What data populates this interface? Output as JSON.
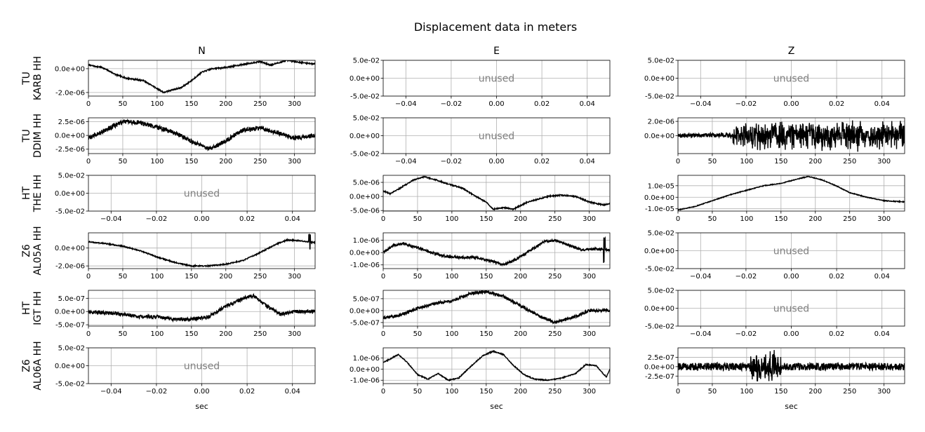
{
  "figure": {
    "title": "Displacement data in meters",
    "column_titles": [
      "N",
      "E",
      "Z"
    ],
    "row_labels": [
      [
        "TU",
        "KARB HH"
      ],
      [
        "TU",
        "DDIM HH"
      ],
      [
        "HT",
        "THE HH"
      ],
      [
        "Z6",
        "AL05A HH"
      ],
      [
        "HT",
        "IGT HH"
      ],
      [
        "Z6",
        "AL06A HH"
      ]
    ],
    "unused_label": "unused",
    "xlabel": "sec"
  },
  "chart_data": [
    {
      "type": "line",
      "row": 0,
      "col": 0,
      "station": "TU KARB HH",
      "component": "N",
      "grid": true,
      "xlim": [
        0,
        330
      ],
      "ylim": [
        -2.3e-06,
        7e-07
      ],
      "xticks": [
        0,
        50,
        100,
        150,
        200,
        250,
        300
      ],
      "xticklabels": [
        "0",
        "50",
        "100",
        "150",
        "200",
        "250",
        "300"
      ],
      "yticks": [
        0,
        -2e-06
      ],
      "yticklabels": [
        "0.0e+00",
        "-2.0e-06"
      ],
      "series": [
        {
          "noise": 5e-08,
          "x": [
            0,
            20,
            40,
            55,
            80,
            95,
            110,
            120,
            135,
            150,
            165,
            180,
            200,
            230,
            250,
            265,
            290,
            310,
            330
          ],
          "y": [
            3e-07,
            1e-07,
            -5e-07,
            -8e-07,
            -1e-06,
            -1.5e-06,
            -2e-06,
            -1.8e-06,
            -1.6e-06,
            -1e-06,
            -3e-07,
            0,
            1e-07,
            4e-07,
            6e-07,
            3e-07,
            7e-07,
            5e-07,
            4e-07
          ]
        }
      ]
    },
    {
      "type": "empty",
      "row": 0,
      "col": 1,
      "station": "TU KARB HH",
      "component": "E",
      "grid": true,
      "xlim": [
        -0.05,
        0.05
      ],
      "ylim": [
        -0.05,
        0.05
      ],
      "xticks": [
        -0.04,
        -0.02,
        0,
        0.02,
        0.04
      ],
      "xticklabels": [
        "−0.04",
        "−0.02",
        "0.00",
        "0.02",
        "0.04"
      ],
      "yticks": [
        0.05,
        0,
        -0.05
      ],
      "yticklabels": [
        "5.0e-02",
        "0.0e+00",
        "-5.0e-02"
      ],
      "text": "unused"
    },
    {
      "type": "empty",
      "row": 0,
      "col": 2,
      "station": "TU KARB HH",
      "component": "Z",
      "grid": true,
      "xlim": [
        -0.05,
        0.05
      ],
      "ylim": [
        -0.05,
        0.05
      ],
      "xticks": [
        -0.04,
        -0.02,
        0,
        0.02,
        0.04
      ],
      "xticklabels": [
        "−0.04",
        "−0.02",
        "0.00",
        "0.02",
        "0.04"
      ],
      "yticks": [
        0.05,
        0,
        -0.05
      ],
      "yticklabels": [
        "5.0e-02",
        "0.0e+00",
        "-5.0e-02"
      ],
      "text": "unused"
    },
    {
      "type": "line",
      "row": 1,
      "col": 0,
      "station": "TU DDIM HH",
      "component": "N",
      "grid": true,
      "xlim": [
        0,
        330
      ],
      "ylim": [
        -3.3e-06,
        3.2e-06
      ],
      "xticks": [
        0,
        50,
        100,
        150,
        200,
        250,
        300
      ],
      "xticklabels": [
        "0",
        "50",
        "100",
        "150",
        "200",
        "250",
        "300"
      ],
      "yticks": [
        2.5e-06,
        0,
        -2.5e-06
      ],
      "yticklabels": [
        "2.5e-06",
        "0.0e+00",
        "-2.5e-06"
      ],
      "series": [
        {
          "noise": 4e-07,
          "x": [
            0,
            25,
            50,
            75,
            100,
            125,
            150,
            175,
            200,
            225,
            250,
            275,
            300,
            330
          ],
          "y": [
            -5e-07,
            1e-06,
            2.5e-06,
            2.3e-06,
            1.5e-06,
            5e-07,
            -1e-06,
            -2.5e-06,
            -1e-06,
            1e-06,
            1.3e-06,
            5e-07,
            -5e-07,
            0
          ]
        }
      ]
    },
    {
      "type": "empty",
      "row": 1,
      "col": 1,
      "station": "TU DDIM HH",
      "component": "E",
      "grid": true,
      "xlim": [
        -0.05,
        0.05
      ],
      "ylim": [
        -0.05,
        0.05
      ],
      "xticks": [
        -0.04,
        -0.02,
        0,
        0.02,
        0.04
      ],
      "xticklabels": [
        "−0.04",
        "−0.02",
        "0.00",
        "0.02",
        "0.04"
      ],
      "yticks": [
        0.05,
        0,
        -0.05
      ],
      "yticklabels": [
        "5.0e-02",
        "0.0e+00",
        "-5.0e-02"
      ],
      "text": "unused"
    },
    {
      "type": "line",
      "row": 1,
      "col": 2,
      "station": "TU DDIM HH",
      "component": "Z",
      "grid": true,
      "xlim": [
        0,
        330
      ],
      "ylim": [
        -2.5e-06,
        2.5e-06
      ],
      "xticks": [
        0,
        50,
        100,
        150,
        200,
        250,
        300
      ],
      "xticklabels": [
        "0",
        "50",
        "100",
        "150",
        "200",
        "250",
        "300"
      ],
      "yticks": [
        2e-06,
        0
      ],
      "yticklabels": [
        "2.0e-06",
        "0.0e+00"
      ],
      "series": [
        {
          "noise": 3e-07,
          "burst": {
            "from": 80,
            "to": 330,
            "amp": 1.6e-06
          },
          "x": [
            0,
            60,
            80,
            330
          ],
          "y": [
            0,
            1e-07,
            0,
            0
          ]
        }
      ]
    },
    {
      "type": "empty",
      "row": 2,
      "col": 0,
      "station": "HT THE HH",
      "component": "N",
      "grid": true,
      "xlim": [
        -0.05,
        0.05
      ],
      "ylim": [
        -0.05,
        0.05
      ],
      "xticks": [
        -0.04,
        -0.02,
        0,
        0.02,
        0.04
      ],
      "xticklabels": [
        "−0.04",
        "−0.02",
        "0.00",
        "0.02",
        "0.04"
      ],
      "yticks": [
        0.05,
        0,
        -0.05
      ],
      "yticklabels": [
        "5.0e-02",
        "0.0e+00",
        "-5.0e-02"
      ],
      "text": "unused"
    },
    {
      "type": "line",
      "row": 2,
      "col": 1,
      "station": "HT THE HH",
      "component": "E",
      "grid": true,
      "xlim": [
        0,
        330
      ],
      "ylim": [
        -5.2e-06,
        7.5e-06
      ],
      "xticks": [
        0,
        50,
        100,
        150,
        200,
        250,
        300
      ],
      "xticklabels": [
        "0",
        "50",
        "100",
        "150",
        "200",
        "250",
        "300"
      ],
      "yticks": [
        5e-06,
        0,
        -5e-06
      ],
      "yticklabels": [
        "5.0e-06",
        "0.0e+00",
        "-5.0e-06"
      ],
      "series": [
        {
          "noise": 2e-07,
          "x": [
            0,
            10,
            25,
            45,
            60,
            75,
            100,
            115,
            135,
            150,
            160,
            175,
            190,
            210,
            225,
            240,
            260,
            280,
            300,
            320,
            330
          ],
          "y": [
            2e-06,
            1e-06,
            3e-06,
            6e-06,
            7e-06,
            6e-06,
            4e-06,
            3e-06,
            0,
            -2e-06,
            -4.5e-06,
            -4e-06,
            -4.5e-06,
            -2e-06,
            -1e-06,
            0,
            5e-07,
            0,
            -2e-06,
            -3e-06,
            -2.5e-06
          ]
        }
      ]
    },
    {
      "type": "line",
      "row": 2,
      "col": 2,
      "station": "HT THE HH",
      "component": "Z",
      "grid": true,
      "xlim": [
        0,
        330
      ],
      "ylim": [
        -1.2e-05,
        1.9e-05
      ],
      "xticks": [
        0,
        50,
        100,
        150,
        200,
        250,
        300
      ],
      "xticklabels": [
        "0",
        "50",
        "100",
        "150",
        "200",
        "250",
        "300"
      ],
      "yticks": [
        1e-05,
        0,
        -1e-05
      ],
      "yticklabels": [
        "1.0e-05",
        "0.0e+00",
        "-1.0e-05"
      ],
      "series": [
        {
          "noise": 3e-07,
          "x": [
            0,
            25,
            50,
            75,
            100,
            125,
            150,
            175,
            190,
            210,
            230,
            250,
            275,
            300,
            330
          ],
          "y": [
            -1.1e-05,
            -8e-06,
            -3e-06,
            2e-06,
            6e-06,
            1e-05,
            1.2e-05,
            1.6e-05,
            1.8e-05,
            1.5e-05,
            1e-05,
            4e-06,
            0,
            -3e-06,
            -4e-06
          ]
        }
      ]
    },
    {
      "type": "line",
      "row": 3,
      "col": 0,
      "station": "Z6 AL05A HH",
      "component": "N",
      "grid": true,
      "xlim": [
        0,
        330
      ],
      "ylim": [
        -2.3e-06,
        1.7e-06
      ],
      "xticks": [
        0,
        50,
        100,
        150,
        200,
        250,
        300
      ],
      "xticklabels": [
        "0",
        "50",
        "100",
        "150",
        "200",
        "250",
        "300"
      ],
      "yticks": [
        0,
        -2e-06
      ],
      "yticklabels": [
        "0.0e+00",
        "-2.0e-06"
      ],
      "series": [
        {
          "noise": 6e-08,
          "spike": {
            "x": 322,
            "amp": 8e-07
          },
          "x": [
            0,
            25,
            50,
            75,
            100,
            125,
            150,
            175,
            200,
            225,
            250,
            275,
            290,
            310,
            330
          ],
          "y": [
            7e-07,
            5e-07,
            2e-07,
            -3e-07,
            -1e-06,
            -1.6e-06,
            -2e-06,
            -2e-06,
            -1.8e-06,
            -1.4e-06,
            -5e-07,
            5e-07,
            9e-07,
            8e-07,
            6e-07
          ]
        }
      ]
    },
    {
      "type": "line",
      "row": 3,
      "col": 1,
      "station": "Z6 AL05A HH",
      "component": "E",
      "grid": true,
      "xlim": [
        0,
        330
      ],
      "ylim": [
        -1.3e-06,
        1.6e-06
      ],
      "xticks": [
        0,
        50,
        100,
        150,
        200,
        250,
        300
      ],
      "xticklabels": [
        "0",
        "50",
        "100",
        "150",
        "200",
        "250",
        "300"
      ],
      "yticks": [
        1e-06,
        0,
        -1e-06
      ],
      "yticklabels": [
        "1.0e-06",
        "0.0e+00",
        "-1.0e-06"
      ],
      "series": [
        {
          "noise": 1e-07,
          "spike": {
            "x": 322,
            "amp": 1e-06
          },
          "x": [
            0,
            15,
            30,
            50,
            70,
            90,
            110,
            135,
            150,
            160,
            175,
            195,
            215,
            235,
            250,
            270,
            290,
            310,
            330
          ],
          "y": [
            0,
            6e-07,
            7e-07,
            4e-07,
            0,
            -3e-07,
            -4e-07,
            -4e-07,
            -6e-07,
            -7e-07,
            -1e-06,
            -5e-07,
            2e-07,
            9e-07,
            1e-06,
            6e-07,
            2e-07,
            3e-07,
            2e-07
          ]
        }
      ]
    },
    {
      "type": "empty",
      "row": 3,
      "col": 2,
      "station": "Z6 AL05A HH",
      "component": "Z",
      "grid": true,
      "xlim": [
        -0.05,
        0.05
      ],
      "ylim": [
        -0.05,
        0.05
      ],
      "xticks": [
        -0.04,
        -0.02,
        0,
        0.02,
        0.04
      ],
      "xticklabels": [
        "−0.04",
        "−0.02",
        "0.00",
        "0.02",
        "0.04"
      ],
      "yticks": [
        0.05,
        0,
        -0.05
      ],
      "yticklabels": [
        "5.0e-02",
        "0.0e+00",
        "-5.0e-02"
      ],
      "text": "unused"
    },
    {
      "type": "line",
      "row": 4,
      "col": 0,
      "station": "HT IGT HH",
      "component": "N",
      "grid": true,
      "xlim": [
        0,
        330
      ],
      "ylim": [
        -5.5e-07,
        8e-07
      ],
      "xticks": [
        0,
        50,
        100,
        150,
        200,
        250,
        300
      ],
      "xticklabels": [
        "0",
        "50",
        "100",
        "150",
        "200",
        "250",
        "300"
      ],
      "yticks": [
        5e-07,
        0,
        -5e-07
      ],
      "yticklabels": [
        "5.0e-07",
        "0.0e+00",
        "-5.0e-07"
      ],
      "series": [
        {
          "noise": 7e-08,
          "x": [
            0,
            25,
            50,
            75,
            100,
            125,
            150,
            175,
            200,
            225,
            240,
            260,
            280,
            300,
            330
          ],
          "y": [
            0,
            -5e-08,
            -1e-07,
            -2e-07,
            -2e-07,
            -3e-07,
            -3e-07,
            -2e-07,
            2e-07,
            5e-07,
            6e-07,
            2e-07,
            -1e-07,
            0,
            0
          ]
        }
      ]
    },
    {
      "type": "line",
      "row": 4,
      "col": 1,
      "station": "HT IGT HH",
      "component": "E",
      "grid": true,
      "xlim": [
        0,
        330
      ],
      "ylim": [
        -6.5e-07,
        8.5e-07
      ],
      "xticks": [
        0,
        50,
        100,
        150,
        200,
        250,
        300
      ],
      "xticklabels": [
        "0",
        "50",
        "100",
        "150",
        "200",
        "250",
        "300"
      ],
      "yticks": [
        5e-07,
        0,
        -5e-07
      ],
      "yticklabels": [
        "5.0e-07",
        "0.0e+00",
        "-5.0e-07"
      ],
      "series": [
        {
          "noise": 6e-08,
          "x": [
            0,
            25,
            50,
            75,
            100,
            125,
            150,
            175,
            200,
            225,
            250,
            275,
            300,
            330
          ],
          "y": [
            -3e-07,
            -2e-07,
            1e-07,
            3e-07,
            4e-07,
            7e-07,
            8e-07,
            6e-07,
            2e-07,
            -2e-07,
            -5e-07,
            -3e-07,
            0,
            0
          ]
        }
      ]
    },
    {
      "type": "empty",
      "row": 4,
      "col": 2,
      "station": "HT IGT HH",
      "component": "Z",
      "grid": true,
      "xlim": [
        -0.05,
        0.05
      ],
      "ylim": [
        -0.05,
        0.05
      ],
      "xticks": [
        -0.04,
        -0.02,
        0,
        0.02,
        0.04
      ],
      "xticklabels": [
        "−0.04",
        "−0.02",
        "0.00",
        "0.02",
        "0.04"
      ],
      "yticks": [
        0.05,
        0,
        -0.05
      ],
      "yticklabels": [
        "5.0e-02",
        "0.0e+00",
        "-5.0e-02"
      ],
      "text": "unused"
    },
    {
      "type": "empty",
      "row": 5,
      "col": 0,
      "station": "Z6 AL06A HH",
      "component": "N",
      "grid": true,
      "xlim": [
        -0.05,
        0.05
      ],
      "ylim": [
        -0.05,
        0.05
      ],
      "xticks": [
        -0.04,
        -0.02,
        0,
        0.02,
        0.04
      ],
      "xticklabels": [
        "−0.04",
        "−0.02",
        "0.00",
        "0.02",
        "0.04"
      ],
      "yticks": [
        0.05,
        0,
        -0.05
      ],
      "yticklabels": [
        "5.0e-02",
        "0.0e+00",
        "-5.0e-02"
      ],
      "text": "unused"
    },
    {
      "type": "line",
      "row": 5,
      "col": 1,
      "station": "Z6 AL06A HH",
      "component": "E",
      "grid": true,
      "xlim": [
        0,
        330
      ],
      "ylim": [
        -1.3e-06,
        1.9e-06
      ],
      "xticks": [
        0,
        50,
        100,
        150,
        200,
        250,
        300
      ],
      "xticklabels": [
        "0",
        "50",
        "100",
        "150",
        "200",
        "250",
        "300"
      ],
      "yticks": [
        1e-06,
        0,
        -1e-06
      ],
      "yticklabels": [
        "1.0e-06",
        "0.0e+00",
        "-1.0e-06"
      ],
      "series": [
        {
          "noise": 4e-08,
          "x": [
            0,
            10,
            22,
            35,
            50,
            65,
            80,
            95,
            110,
            125,
            145,
            160,
            175,
            190,
            205,
            220,
            240,
            260,
            280,
            295,
            310,
            320,
            325,
            330
          ],
          "y": [
            6e-07,
            9e-07,
            1.3e-06,
            6e-07,
            -5e-07,
            -9e-07,
            -4e-07,
            -1e-06,
            -8e-07,
            1e-07,
            1.2e-06,
            1.6e-06,
            1.3e-06,
            3e-07,
            -5e-07,
            -9e-07,
            -1e-06,
            -8e-07,
            -4e-07,
            4e-07,
            3e-07,
            -4e-07,
            -7e-07,
            0
          ]
        }
      ]
    },
    {
      "type": "line",
      "row": 5,
      "col": 2,
      "station": "Z6 AL06A HH",
      "component": "Z",
      "grid": true,
      "xlim": [
        0,
        330
      ],
      "ylim": [
        -4.5e-07,
        5e-07
      ],
      "xticks": [
        0,
        50,
        100,
        150,
        200,
        250,
        300
      ],
      "xticklabels": [
        "0",
        "50",
        "100",
        "150",
        "200",
        "250",
        "300"
      ],
      "yticks": [
        2.5e-07,
        0,
        -2.5e-07
      ],
      "yticklabels": [
        "2.5e-07",
        "0.0e+00",
        "-2.5e-07"
      ],
      "series": [
        {
          "noise": 1e-07,
          "burst": {
            "from": 105,
            "to": 150,
            "amp": 3e-07
          },
          "x": [
            0,
            330
          ],
          "y": [
            0,
            0
          ]
        }
      ]
    }
  ]
}
